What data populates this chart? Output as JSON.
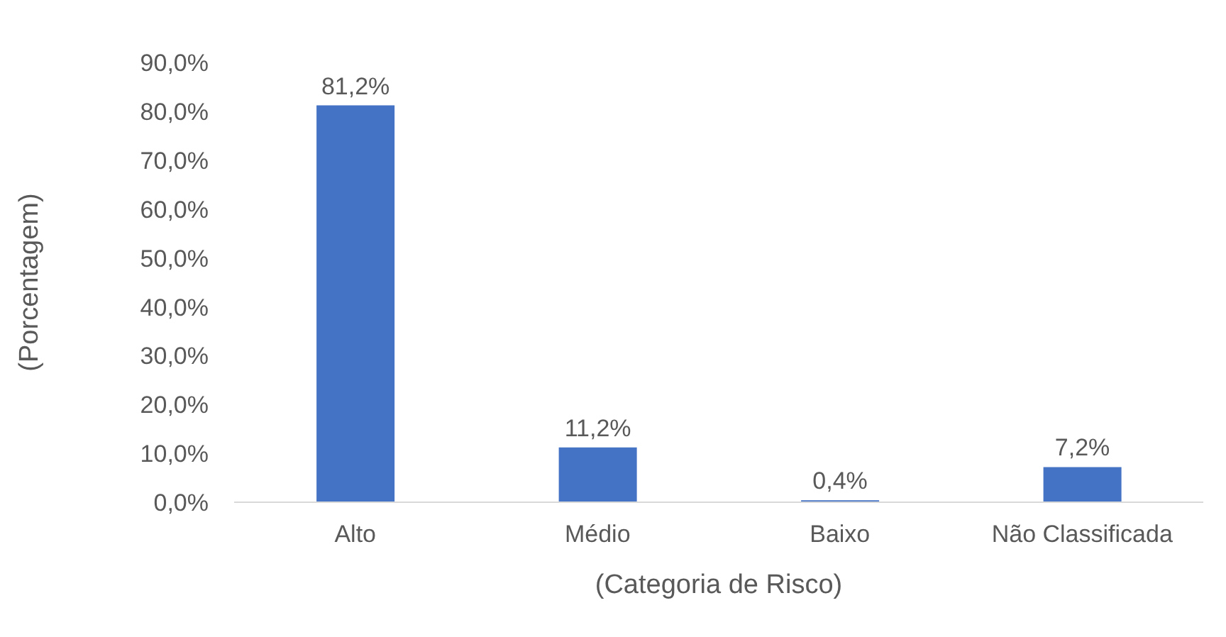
{
  "chart_data": {
    "type": "bar",
    "xlabel": "(Categoria de Risco)",
    "ylabel": "(Porcentagem)",
    "categories": [
      "Alto",
      "Médio",
      "Baixo",
      "Não Classificada"
    ],
    "values": [
      81.2,
      11.2,
      0.4,
      7.2
    ],
    "value_labels": [
      "81,2%",
      "11,2%",
      "0,4%",
      "7,2%"
    ],
    "color": "#4472c4",
    "ylim": [
      0,
      90
    ],
    "yticks": [
      {
        "value": 0,
        "label": "0,0%"
      },
      {
        "value": 10,
        "label": "10,0%"
      },
      {
        "value": 20,
        "label": "20,0%"
      },
      {
        "value": 30,
        "label": "30,0%"
      },
      {
        "value": 40,
        "label": "40,0%"
      },
      {
        "value": 50,
        "label": "50,0%"
      },
      {
        "value": 60,
        "label": "60,0%"
      },
      {
        "value": 70,
        "label": "70,0%"
      },
      {
        "value": 80,
        "label": "80,0%"
      },
      {
        "value": 90,
        "label": "90,0%"
      }
    ]
  }
}
